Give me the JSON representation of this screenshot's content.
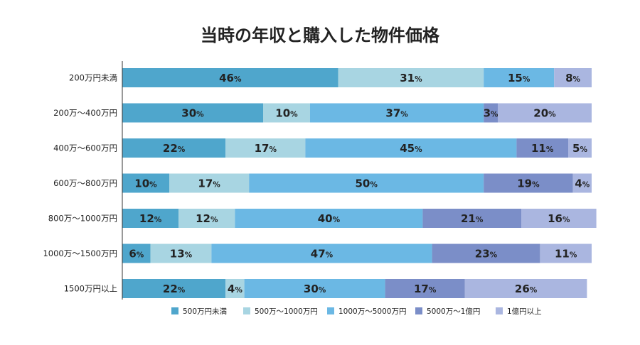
{
  "chart_data": {
    "type": "bar",
    "orientation": "horizontal",
    "stacked": true,
    "normalized": true,
    "title": "当時の年収と購入した物件価格",
    "categories": [
      "200万円未満",
      "200万〜400万円",
      "400万〜600万円",
      "600万〜800万円",
      "800万〜1000万円",
      "1000万〜1500万円",
      "1500万円以上"
    ],
    "series": [
      {
        "name": "500万円未満",
        "color": "#4fa6cc",
        "values": [
          46,
          30,
          22,
          10,
          12,
          6,
          22
        ]
      },
      {
        "name": "500万〜1000万円",
        "color": "#a8d5e2",
        "values": [
          31,
          10,
          17,
          17,
          12,
          13,
          4
        ]
      },
      {
        "name": "1000万〜5000万円",
        "color": "#6bb8e4",
        "values": [
          15,
          37,
          45,
          50,
          40,
          47,
          30
        ]
      },
      {
        "name": "5000万〜1億円",
        "color": "#7b8ec8",
        "values": [
          0,
          3,
          11,
          19,
          21,
          23,
          17
        ]
      },
      {
        "name": "1億円以上",
        "color": "#aab6e0",
        "values": [
          8,
          20,
          5,
          4,
          16,
          11,
          26
        ]
      }
    ],
    "value_suffix": "%",
    "legend_position": "bottom",
    "xlim": [
      0,
      100
    ],
    "grid": false
  }
}
